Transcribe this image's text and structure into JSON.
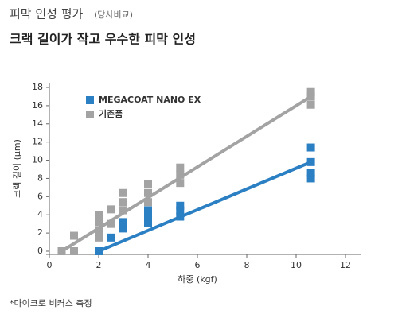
{
  "chart_data": {
    "type": "scatter",
    "title": "피막 인성 평가",
    "title_note": "(당사비교)",
    "subtitle": "크랙 길이가 작고 우수한 피막 인성",
    "x_label": "하중 (kgf)",
    "y_label": "크랙 길이 (μm)",
    "footnote": "*마이크로 비커스 측정",
    "xlim": [
      0,
      12
    ],
    "xticks": [
      0,
      2,
      4,
      6,
      8,
      10,
      12
    ],
    "ylim": [
      0,
      18
    ],
    "yticks": [
      0,
      2,
      4,
      6,
      8,
      10,
      12,
      14,
      16,
      18
    ],
    "legend": "top-left",
    "series": [
      {
        "name": "MEGACOAT NANO EX",
        "color": "#2b7fc3",
        "x": [
          2,
          2.5,
          3,
          3,
          4,
          4,
          4,
          5.3,
          5.3,
          5.3,
          10.6,
          10.6,
          10.6,
          10.6
        ],
        "values": [
          0,
          1.5,
          2.5,
          3.2,
          3.1,
          3.8,
          4.5,
          3.8,
          4.5,
          5,
          8,
          8.6,
          9.8,
          11.4
        ],
        "trendline": {
          "x": [
            2,
            10.6
          ],
          "values": [
            0,
            9.8
          ]
        }
      },
      {
        "name": "기존품",
        "color": "#a3a3a3",
        "x": [
          0.5,
          1,
          1,
          2,
          2,
          2,
          2,
          2.5,
          2.5,
          3,
          3,
          3,
          4,
          4,
          4,
          5.3,
          5.3,
          5.3,
          10.6,
          10.6,
          10.6
        ],
        "values": [
          0,
          0,
          1.7,
          1.5,
          2.3,
          3.2,
          4,
          3,
          4.6,
          4.5,
          5.4,
          6.4,
          5.4,
          6.4,
          7.4,
          7.5,
          8.4,
          9.2,
          16.1,
          17,
          17.5
        ],
        "trendline": {
          "x": [
            0.5,
            10.6
          ],
          "values": [
            0,
            17
          ]
        }
      }
    ]
  }
}
